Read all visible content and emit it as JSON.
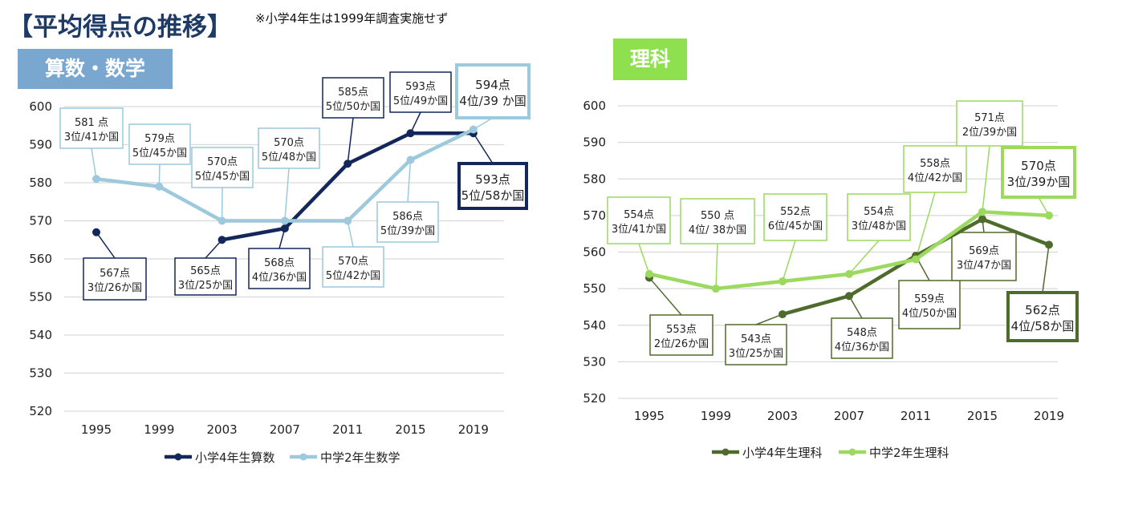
{
  "page": {
    "title": "【平均得点の推移】",
    "note": "※小学4年生は1999年調査実施せず"
  },
  "chart_data": [
    {
      "type": "line",
      "panel_label": "算数・数学",
      "categories": [
        "1995",
        "1999",
        "2003",
        "2007",
        "2011",
        "2015",
        "2019"
      ],
      "ylim": [
        520,
        600
      ],
      "yticks": [
        520,
        530,
        540,
        550,
        560,
        570,
        580,
        590,
        600
      ],
      "grid": true,
      "legend_position": "bottom",
      "series": [
        {
          "name": "小学4年生算数",
          "color": "#13275a",
          "values": [
            567,
            null,
            565,
            568,
            585,
            593,
            593
          ],
          "annotations": [
            {
              "score": "567点",
              "rank": "3位/26か国"
            },
            null,
            {
              "score": "565点",
              "rank": "3位/25か国"
            },
            {
              "score": "568点",
              "rank": "4位/36か国"
            },
            {
              "score": "585点",
              "rank": "5位/50か国"
            },
            {
              "score": "593点",
              "rank": "5位/49か国"
            },
            {
              "score": "593点",
              "rank": "5位/58か国"
            }
          ]
        },
        {
          "name": "中学2年生数学",
          "color": "#9cc9db",
          "values": [
            581,
            579,
            570,
            570,
            570,
            586,
            594
          ],
          "annotations": [
            {
              "score": "581 点",
              "rank": "3位/41か国"
            },
            {
              "score": "579点",
              "rank": "5位/45か国"
            },
            {
              "score": "570点",
              "rank": "5位/45か国"
            },
            {
              "score": "570点",
              "rank": "5位/48か国"
            },
            {
              "score": "570点",
              "rank": "5位/42か国"
            },
            {
              "score": "586点",
              "rank": "5位/39か国"
            },
            {
              "score": "594点",
              "rank": "4位/39 か国"
            }
          ]
        }
      ]
    },
    {
      "type": "line",
      "panel_label": "理科",
      "categories": [
        "1995",
        "1999",
        "2003",
        "2007",
        "2011",
        "2015",
        "2019"
      ],
      "ylim": [
        520,
        600
      ],
      "yticks": [
        520,
        530,
        540,
        550,
        560,
        570,
        580,
        590,
        600
      ],
      "grid": true,
      "legend_position": "bottom",
      "series": [
        {
          "name": "小学4年生理科",
          "color": "#4f6b2c",
          "values": [
            553,
            null,
            543,
            548,
            559,
            569,
            562
          ],
          "annotations": [
            {
              "score": "553点",
              "rank": "2位/26か国"
            },
            null,
            {
              "score": "543点",
              "rank": "3位/25か国"
            },
            {
              "score": "548点",
              "rank": "4位/36か国"
            },
            {
              "score": "559点",
              "rank": "4位/50か国"
            },
            {
              "score": "569点",
              "rank": "3位/47か国"
            },
            {
              "score": "562点",
              "rank": "4位/58か国"
            }
          ]
        },
        {
          "name": "中学2年生理科",
          "color": "#9bd95f",
          "values": [
            554,
            550,
            552,
            554,
            558,
            571,
            570
          ],
          "annotations": [
            {
              "score": "554点",
              "rank": "3位/41か国"
            },
            {
              "score": "550 点",
              "rank": "4位/ 38か国"
            },
            {
              "score": "552点",
              "rank": "6位/45か国"
            },
            {
              "score": "554点",
              "rank": "3位/48か国"
            },
            {
              "score": "558点",
              "rank": "4位/42か国"
            },
            {
              "score": "571点",
              "rank": "2位/39か国"
            },
            {
              "score": "570点",
              "rank": "3位/39か国"
            }
          ]
        }
      ]
    }
  ]
}
